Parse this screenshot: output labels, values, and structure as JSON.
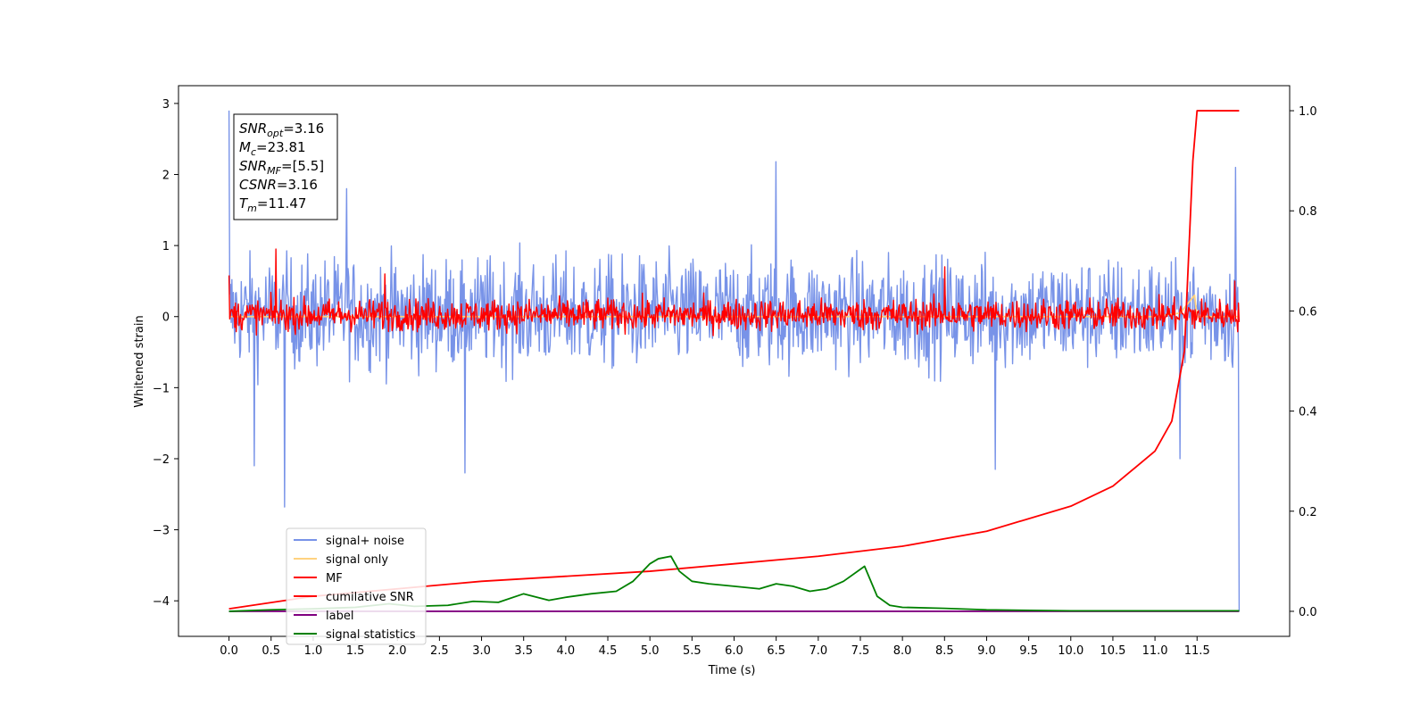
{
  "chart_data": {
    "type": "line",
    "title": "",
    "xlabel": "Time (s)",
    "ylabel": "Whitened strain",
    "xlim": [
      -0.6,
      12.6
    ],
    "ylim": [
      -4.5,
      3.25
    ],
    "y2lim": [
      -0.05,
      1.05
    ],
    "xticks": [
      "0.0",
      "0.5",
      "1.0",
      "1.5",
      "2.0",
      "2.5",
      "3.0",
      "3.5",
      "4.0",
      "4.5",
      "5.0",
      "5.5",
      "6.0",
      "6.5",
      "7.0",
      "7.5",
      "8.0",
      "8.5",
      "9.0",
      "9.5",
      "10.0",
      "10.5",
      "11.0",
      "11.5"
    ],
    "yticks": [
      "3",
      "2",
      "1",
      "0",
      "−1",
      "−2",
      "−3",
      "−4"
    ],
    "y2ticks": [
      "1.0",
      "0.8",
      "0.6",
      "0.4",
      "0.2",
      "0.0"
    ],
    "legend_position": "lower-left",
    "annotation": {
      "lines": [
        {
          "sym": "SNR",
          "sub": "opt",
          "val": "=3.16"
        },
        {
          "sym": "M",
          "sub": "c",
          "val": "=23.81"
        },
        {
          "sym": "SNR",
          "sub": "MF",
          "val": "=[5.5]"
        },
        {
          "sym": "CSNR",
          "sub": "",
          "val": "=3.16"
        },
        {
          "sym": "T",
          "sub": "m",
          "val": "=11.47"
        }
      ]
    },
    "series": [
      {
        "name": "signal+ noise",
        "color": "#7893e8",
        "axis": "left",
        "style": "noise",
        "x_range": [
          0,
          12
        ],
        "band": [
          -1.1,
          1.2
        ],
        "spikes": [
          [
            0.0,
            2.9
          ],
          [
            0.3,
            -2.1
          ],
          [
            0.66,
            -2.68
          ],
          [
            1.4,
            1.8
          ],
          [
            2.8,
            -2.2
          ],
          [
            6.5,
            2.18
          ],
          [
            9.1,
            -2.15
          ],
          [
            11.3,
            -2.0
          ],
          [
            11.96,
            2.1
          ],
          [
            12.0,
            -4.15
          ]
        ]
      },
      {
        "name": "signal only",
        "color": "#ffd27f",
        "axis": "left",
        "style": "chirp",
        "x": [
          0,
          11.0,
          11.3,
          11.47,
          11.5,
          12.0
        ],
        "y": [
          0,
          0,
          0.05,
          0.3,
          0,
          0
        ]
      },
      {
        "name": "MF",
        "color": "#ff0000",
        "axis": "left",
        "style": "noise",
        "x_range": [
          0,
          12
        ],
        "band": [
          -0.3,
          0.35
        ],
        "spikes": [
          [
            0.0,
            0.58
          ],
          [
            0.56,
            0.95
          ],
          [
            1.85,
            0.6
          ],
          [
            8.5,
            0.7
          ],
          [
            11.95,
            0.5
          ]
        ]
      },
      {
        "name": "cumilative SNR",
        "color": "#ff0000",
        "axis": "right",
        "style": "line",
        "x": [
          0,
          1,
          2,
          3,
          4,
          5,
          6,
          7,
          8,
          9,
          10,
          10.5,
          11,
          11.2,
          11.35,
          11.45,
          11.5,
          12
        ],
        "y": [
          0.005,
          0.03,
          0.045,
          0.06,
          0.07,
          0.08,
          0.095,
          0.11,
          0.13,
          0.16,
          0.21,
          0.25,
          0.32,
          0.38,
          0.52,
          0.9,
          1.0,
          1.0
        ]
      },
      {
        "name": "label",
        "color": "#800080",
        "axis": "right",
        "style": "line",
        "x": [
          0,
          12
        ],
        "y": [
          0,
          0
        ]
      },
      {
        "name": "signal statistics",
        "color": "#008000",
        "axis": "right",
        "style": "line",
        "x": [
          0,
          0.5,
          1.0,
          1.5,
          1.9,
          2.2,
          2.6,
          2.9,
          3.2,
          3.5,
          3.8,
          4.0,
          4.3,
          4.6,
          4.8,
          5.0,
          5.1,
          5.25,
          5.35,
          5.5,
          5.7,
          6.0,
          6.3,
          6.5,
          6.7,
          6.9,
          7.1,
          7.3,
          7.55,
          7.7,
          7.85,
          8.0,
          8.5,
          9.0,
          10.0,
          11.0,
          12.0
        ],
        "y": [
          0.0,
          0.003,
          0.005,
          0.008,
          0.015,
          0.01,
          0.012,
          0.02,
          0.018,
          0.035,
          0.022,
          0.028,
          0.035,
          0.04,
          0.06,
          0.095,
          0.105,
          0.11,
          0.08,
          0.06,
          0.055,
          0.05,
          0.045,
          0.055,
          0.05,
          0.04,
          0.045,
          0.06,
          0.09,
          0.03,
          0.012,
          0.008,
          0.006,
          0.003,
          0.001,
          0.001,
          0.001
        ]
      }
    ]
  }
}
